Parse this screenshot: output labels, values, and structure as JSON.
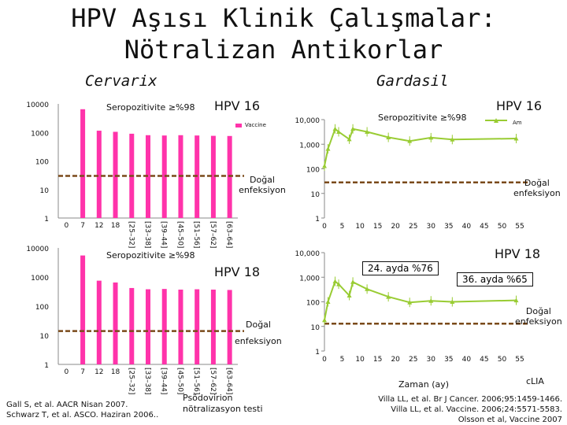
{
  "title_line1": "HPV Aşısı Klinik Çalışmalar:",
  "title_line2": "Nötralizan Antikorlar",
  "left_header": "Cervarix",
  "right_header": "Gardasil",
  "seropos": "Seropozitivite ≥%98",
  "hpv16": "HPV 16",
  "hpv18": "HPV 18",
  "vaccine_legend": "Vaccine",
  "am_legend": "Am",
  "natural_inf": "Doğal enfeksiyon",
  "natural_inf_left_bottom_1": "Doğal",
  "natural_inf_left_bottom_2": "enfeksiyon",
  "natural_inf_right_1": "Doğal",
  "natural_inf_right_2": "enfeksiyon",
  "ann_24": "24. ayda %76",
  "ann_36": "36. ayda %65",
  "xlabel_right": "Zaman (ay)",
  "clia": "cLIA",
  "pseudovirion_1": "Psödovirion",
  "pseudovirion_2": "nötralizasyon testi",
  "ref_left_1": "Gall S, et al. AACR Nisan 2007.",
  "ref_left_2": "Schwarz T, et al. ASCO. Haziran 2006..",
  "ref_right_1": "Villa LL, et al. Br J Cancer. 2006;95:1459-1466.",
  "ref_right_2": "Villa LL, et al. Vaccine. 2006;24:5571-5583.",
  "ref_right_3": "Olsson et al, Vaccine 2007",
  "colors": {
    "bar": "#ff33aa",
    "line": "#99cc33",
    "ref_line": "#7a4a1a"
  },
  "chart_data": [
    {
      "type": "bar",
      "title": "HPV 16",
      "scale": "log",
      "ylim": [
        1,
        10000
      ],
      "yticks": [
        "10000",
        "1000",
        "100",
        "10",
        "1"
      ],
      "categories": [
        "0",
        "7",
        "12",
        "18",
        "[25–32]",
        "[33–38]",
        "[39–44]",
        "[45–50]",
        "[51–56]",
        "[57–62]",
        "[63–64]"
      ],
      "values": [
        null,
        6500,
        1150,
        1050,
        900,
        800,
        780,
        800,
        780,
        760,
        750
      ],
      "natural_infection_level": 30
    },
    {
      "type": "bar",
      "title": "HPV 18",
      "scale": "log",
      "ylim": [
        1,
        10000
      ],
      "yticks": [
        "10000",
        "1000",
        "100",
        "10",
        "1"
      ],
      "categories": [
        "0",
        "7",
        "12",
        "18",
        "[25–32]",
        "[33–38]",
        "[39–44]",
        "[45–50]",
        "[51–56]",
        "[57–62]",
        "[63–64]"
      ],
      "values": [
        null,
        5500,
        750,
        650,
        420,
        380,
        390,
        370,
        380,
        370,
        360
      ],
      "natural_infection_level": 14
    },
    {
      "type": "line",
      "title": "HPV 16",
      "scale": "log",
      "ylim": [
        1,
        10000
      ],
      "yticks": [
        "10,000",
        "1,000",
        "100",
        "10",
        "1"
      ],
      "xticks": [
        0,
        5,
        10,
        15,
        20,
        25,
        30,
        35,
        40,
        45,
        50,
        55
      ],
      "series": [
        {
          "name": "Am",
          "x": [
            0,
            1,
            3,
            4,
            7,
            8,
            12,
            18,
            24,
            30,
            36,
            54
          ],
          "y": [
            130,
            650,
            4200,
            3200,
            1600,
            4200,
            3200,
            1900,
            1350,
            1850,
            1550,
            1700
          ]
        }
      ],
      "natural_infection_level": 28
    },
    {
      "type": "line",
      "title": "HPV 18",
      "scale": "log",
      "ylim": [
        1,
        10000
      ],
      "yticks": [
        "10,000",
        "1,000",
        "100",
        "10",
        "1"
      ],
      "xticks": [
        0,
        5,
        10,
        15,
        20,
        25,
        30,
        35,
        40,
        45,
        50,
        55
      ],
      "series": [
        {
          "x": [
            0,
            1,
            3,
            4,
            7,
            8,
            12,
            18,
            24,
            30,
            36,
            54
          ],
          "y": [
            18,
            100,
            680,
            520,
            180,
            640,
            330,
            160,
            95,
            110,
            100,
            115
          ]
        }
      ],
      "natural_infection_level": 13
    }
  ]
}
